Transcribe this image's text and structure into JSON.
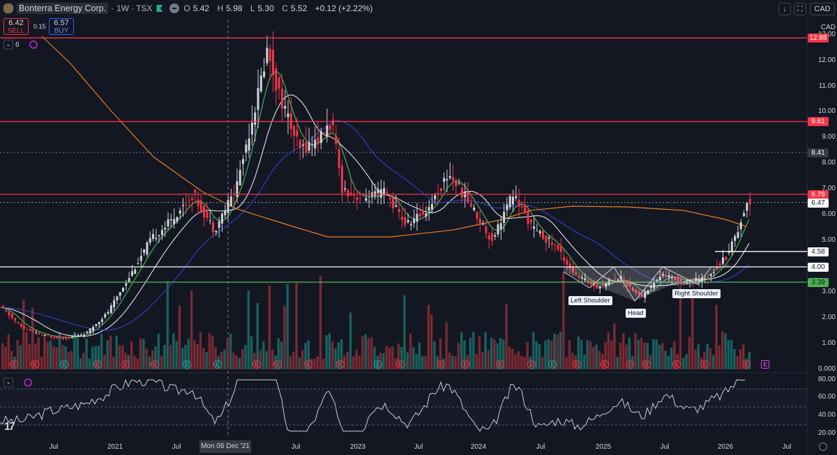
{
  "header": {
    "symbol": "Bonterra Energy Corp.",
    "interval": "1W",
    "exchange": "TSX",
    "open_label": "O",
    "open": "5.42",
    "high_label": "H",
    "high": "5.98",
    "low_label": "L",
    "low": "5.30",
    "close_label": "C",
    "close": "5.52",
    "change": "+0.12 (+2.22%)"
  },
  "trade": {
    "sell_price": "6.42",
    "sell_label": "SELL",
    "spread": "0.15",
    "buy_price": "6.57",
    "buy_label": "BUY"
  },
  "indicator_count": "6",
  "currency": "CAD",
  "colors": {
    "background": "#131722",
    "up": "#d1d4dc",
    "down": "#f23645",
    "resistance": "#f23645",
    "support_green": "#4caf50",
    "support_white": "#ffffff",
    "ma_green": "#4caf50",
    "ma_white": "#d1d4dc",
    "ma_blue": "#2f3fb8",
    "ma_orange": "#e67e22",
    "volume_up": "#1c6e6a",
    "volume_down": "#8c2e36"
  },
  "price_axis": {
    "ticks": [
      "CAD",
      "13.00",
      "12.00",
      "11.00",
      "10.00",
      "9.00",
      "8.00",
      "7.00",
      "6.00",
      "5.00",
      "3.00",
      "2.00",
      "1.00",
      "0.000"
    ],
    "levels": [
      {
        "value": "12.88",
        "style": "red"
      },
      {
        "value": "9.61",
        "style": "red"
      },
      {
        "value": "8.41",
        "style": "gray"
      },
      {
        "value": "6.79",
        "style": "red"
      },
      {
        "value": "6.47",
        "style": "white"
      },
      {
        "value": "4.58",
        "style": "white"
      },
      {
        "value": "4.00",
        "style": "white"
      },
      {
        "value": "3.39",
        "style": "green"
      }
    ]
  },
  "rsi_axis": {
    "ticks": [
      "80.00",
      "60.00",
      "40.00",
      "20.00"
    ]
  },
  "time_axis": {
    "labels": [
      "Jul",
      "2021",
      "Jul",
      "Jul",
      "2023",
      "Jul",
      "2024",
      "Jul",
      "2025",
      "Jul",
      "2026",
      "Jul"
    ],
    "crosshair_label": "Mon 06 Dec '21"
  },
  "pattern_labels": {
    "left_shoulder": "Left Shoulder",
    "head": "Head",
    "right_shoulder": "Right Shoulder"
  },
  "earnings_marker": "E",
  "chart_data": {
    "type": "candlestick",
    "title": "Bonterra Energy Corp. · 1W · TSX",
    "series_weekly_close": [
      {
        "date": "2020-04",
        "value": 2.4
      },
      {
        "date": "2020-06",
        "value": 1.6
      },
      {
        "date": "2020-08",
        "value": 1.3
      },
      {
        "date": "2020-10",
        "value": 1.2
      },
      {
        "date": "2020-12",
        "value": 1.4
      },
      {
        "date": "2021-02",
        "value": 2.2
      },
      {
        "date": "2021-04",
        "value": 3.6
      },
      {
        "date": "2021-06",
        "value": 5.0
      },
      {
        "date": "2021-08",
        "value": 5.8
      },
      {
        "date": "2021-10",
        "value": 6.8
      },
      {
        "date": "2021-12",
        "value": 5.4
      },
      {
        "date": "2022-02",
        "value": 7.0
      },
      {
        "date": "2022-04",
        "value": 10.5
      },
      {
        "date": "2022-05",
        "value": 12.5
      },
      {
        "date": "2022-06",
        "value": 10.8
      },
      {
        "date": "2022-08",
        "value": 8.5
      },
      {
        "date": "2022-10",
        "value": 9.0
      },
      {
        "date": "2022-11",
        "value": 9.6
      },
      {
        "date": "2022-12",
        "value": 7.0
      },
      {
        "date": "2023-02",
        "value": 6.6
      },
      {
        "date": "2023-04",
        "value": 6.9
      },
      {
        "date": "2023-06",
        "value": 5.6
      },
      {
        "date": "2023-08",
        "value": 6.2
      },
      {
        "date": "2023-10",
        "value": 7.6
      },
      {
        "date": "2023-12",
        "value": 6.4
      },
      {
        "date": "2024-02",
        "value": 5.0
      },
      {
        "date": "2024-04",
        "value": 6.8
      },
      {
        "date": "2024-06",
        "value": 5.4
      },
      {
        "date": "2024-08",
        "value": 4.8
      },
      {
        "date": "2024-10",
        "value": 3.6
      },
      {
        "date": "2024-12",
        "value": 3.2
      },
      {
        "date": "2025-02",
        "value": 3.6
      },
      {
        "date": "2025-04",
        "value": 2.8
      },
      {
        "date": "2025-06",
        "value": 3.7
      },
      {
        "date": "2025-08",
        "value": 3.4
      },
      {
        "date": "2025-10",
        "value": 3.5
      },
      {
        "date": "2025-12",
        "value": 4.4
      },
      {
        "date": "2026-01",
        "value": 5.3
      },
      {
        "date": "2026-02",
        "value": 6.47
      }
    ],
    "horizontal_levels": [
      12.88,
      9.61,
      6.79,
      4.58,
      4.0,
      3.39
    ],
    "ylim": [
      0,
      13.4
    ],
    "rsi_ylim": [
      15,
      85
    ],
    "grid": false
  }
}
